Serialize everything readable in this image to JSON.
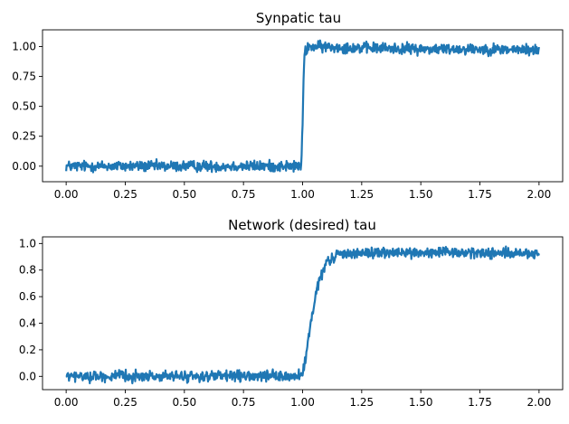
{
  "chart_data": [
    {
      "type": "line",
      "title": "Synpatic tau",
      "xlabel": "",
      "ylabel": "",
      "xlim": [
        -0.1,
        2.1
      ],
      "ylim": [
        -0.13,
        1.14
      ],
      "xticks": [
        0.0,
        0.25,
        0.5,
        0.75,
        1.0,
        1.25,
        1.5,
        1.75,
        2.0
      ],
      "xtick_labels": [
        "0.00",
        "0.25",
        "0.50",
        "0.75",
        "1.00",
        "1.25",
        "1.50",
        "1.75",
        "2.00"
      ],
      "yticks": [
        0.0,
        0.25,
        0.5,
        0.75,
        1.0
      ],
      "ytick_labels": [
        "0.00",
        "0.25",
        "0.50",
        "0.75",
        "1.00"
      ],
      "color": "#1f77b4",
      "grid": false,
      "series": [
        {
          "x": [
            0.0,
            0.2,
            0.4,
            0.6,
            0.8,
            0.98,
            0.995,
            1.0,
            1.005,
            1.01,
            1.02,
            1.04,
            1.25,
            1.5,
            1.75,
            2.0
          ],
          "values": [
            0.0,
            0.0,
            0.0,
            0.0,
            0.0,
            0.0,
            0.0,
            0.35,
            0.82,
            0.95,
            0.99,
            1.0,
            0.99,
            0.98,
            0.98,
            0.97
          ],
          "noise_amplitude": 0.035
        }
      ]
    },
    {
      "type": "line",
      "title": "Network (desired) tau",
      "xlabel": "",
      "ylabel": "",
      "xlim": [
        -0.1,
        2.1
      ],
      "ylim": [
        -0.1,
        1.05
      ],
      "xticks": [
        0.0,
        0.25,
        0.5,
        0.75,
        1.0,
        1.25,
        1.5,
        1.75,
        2.0
      ],
      "xtick_labels": [
        "0.00",
        "0.25",
        "0.50",
        "0.75",
        "1.00",
        "1.25",
        "1.50",
        "1.75",
        "2.00"
      ],
      "yticks": [
        0.0,
        0.2,
        0.4,
        0.6,
        0.8,
        1.0
      ],
      "ytick_labels": [
        "0.0",
        "0.2",
        "0.4",
        "0.6",
        "0.8",
        "1.0"
      ],
      "color": "#1f77b4",
      "grid": false,
      "series": [
        {
          "x": [
            0.0,
            0.25,
            0.5,
            0.75,
            0.98,
            1.0,
            1.01,
            1.02,
            1.03,
            1.05,
            1.07,
            1.1,
            1.15,
            1.25,
            1.5,
            1.75,
            2.0
          ],
          "values": [
            0.0,
            0.0,
            0.0,
            0.0,
            0.0,
            0.02,
            0.1,
            0.22,
            0.35,
            0.55,
            0.72,
            0.85,
            0.92,
            0.93,
            0.93,
            0.93,
            0.92
          ],
          "noise_amplitude": 0.03
        }
      ]
    }
  ]
}
